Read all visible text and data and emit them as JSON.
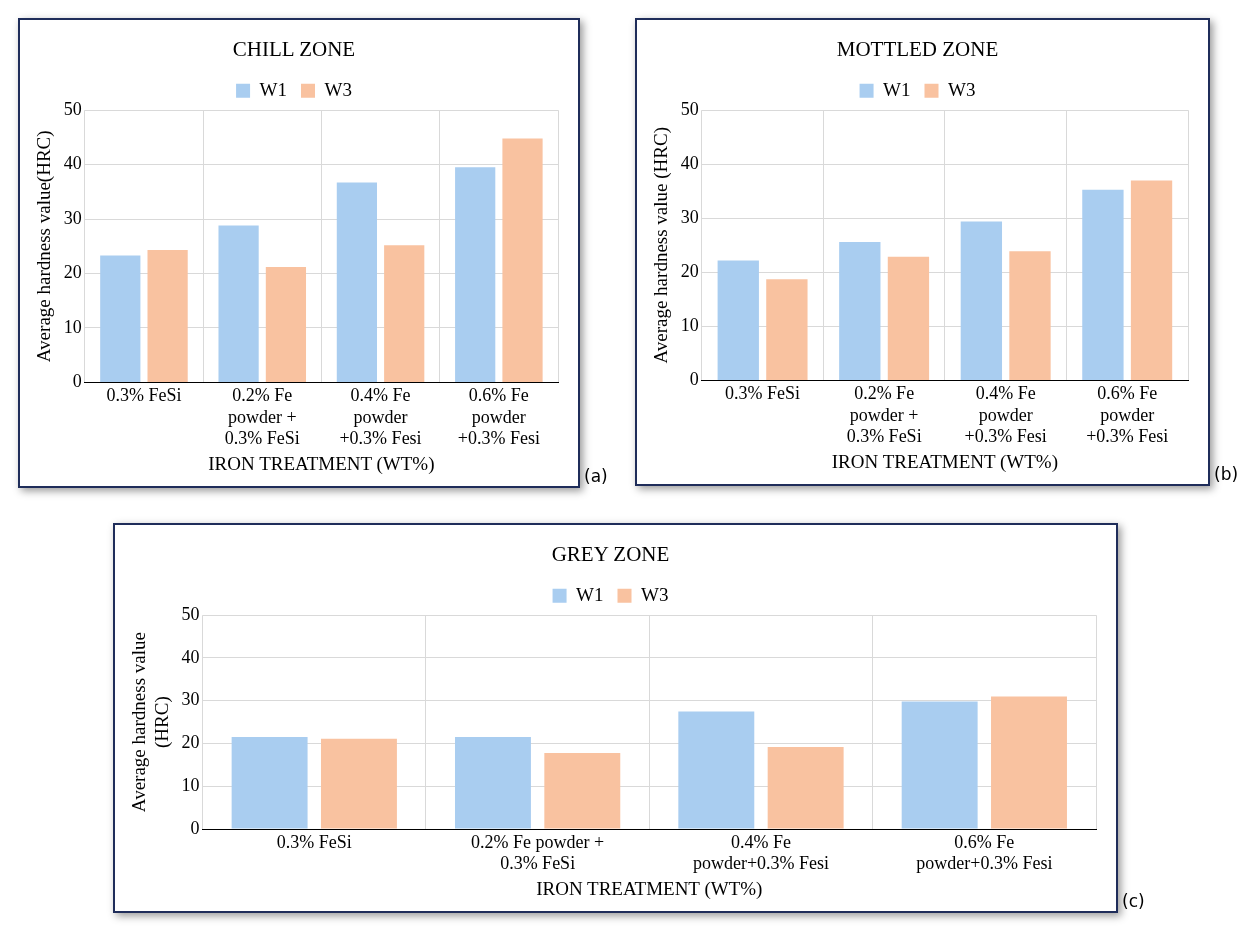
{
  "chart_data": [
    {
      "type": "bar",
      "title": "CHILL ZONE",
      "xlabel": "IRON TREATMENT (WT%)",
      "ylabel": "Average hardness value(HRC)",
      "categories": [
        "0.3% FeSi",
        "0.2% Fe powder + 0.3% FeSi",
        "0.4% Fe powder +0.3% Fesi",
        "0.6% Fe powder +0.3% Fesi"
      ],
      "series": [
        {
          "name": "W1",
          "color": "#a9cdf0",
          "values": [
            23.3,
            28.8,
            36.7,
            39.5
          ]
        },
        {
          "name": "W3",
          "color": "#f9c2a0",
          "values": [
            24.3,
            21.2,
            25.2,
            44.8
          ]
        }
      ],
      "ylim": [
        0,
        50
      ],
      "yticks": [
        0,
        10,
        20,
        30,
        40,
        50
      ],
      "grid": true,
      "legend": "top",
      "annotations": [
        "(a)"
      ]
    },
    {
      "type": "bar",
      "title": "MOTTLED ZONE",
      "xlabel": "IRON TREATMENT (WT%)",
      "ylabel": "Average hardness value (HRC)",
      "categories": [
        "0.3% FeSi",
        "0.2% Fe powder + 0.3% FeSi",
        "0.4% Fe powder +0.3% Fesi",
        "0.6% Fe powder +0.3% Fesi"
      ],
      "series": [
        {
          "name": "W1",
          "color": "#a9cdf0",
          "values": [
            22.2,
            25.6,
            29.4,
            35.3
          ]
        },
        {
          "name": "W3",
          "color": "#f9c2a0",
          "values": [
            18.7,
            22.9,
            23.9,
            37.0
          ]
        }
      ],
      "ylim": [
        0,
        50
      ],
      "yticks": [
        0,
        10,
        20,
        30,
        40,
        50
      ],
      "grid": true,
      "legend": "top",
      "annotations": [
        "(b)"
      ]
    },
    {
      "type": "bar",
      "title": "GREY ZONE",
      "xlabel": "IRON TREATMENT (WT%)",
      "ylabel": "Average hardness value (HRC)",
      "categories": [
        "0.3% FeSi",
        "0.2% Fe powder + 0.3% FeSi",
        "0.4% Fe powder+0.3% Fesi",
        "0.6% Fe powder+0.3% Fesi"
      ],
      "series": [
        {
          "name": "W1",
          "color": "#a9cdf0",
          "values": [
            21.5,
            21.5,
            27.5,
            29.8
          ]
        },
        {
          "name": "W3",
          "color": "#f9c2a0",
          "values": [
            21.1,
            17.8,
            19.2,
            31.0
          ]
        }
      ],
      "ylim": [
        0,
        50
      ],
      "yticks": [
        0,
        10,
        20,
        30,
        40,
        50
      ],
      "grid": true,
      "legend": "top",
      "annotations": [
        "(c)"
      ]
    }
  ]
}
